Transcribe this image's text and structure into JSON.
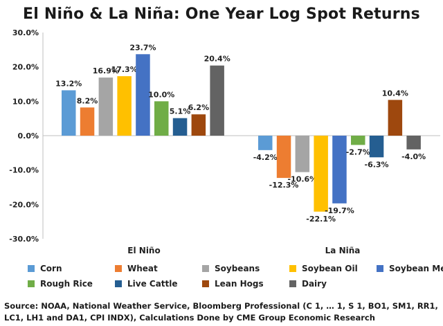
{
  "chart_data": {
    "type": "bar",
    "title": "El Niño & La Niña: One Year Log Spot Returns",
    "categories": [
      "El Niño",
      "La Niña"
    ],
    "ylim": [
      -30,
      30
    ],
    "yticks": [
      "30.0%",
      "20.0%",
      "10.0%",
      "0.0%",
      "-10.0%",
      "-20.0%",
      "-30.0%"
    ],
    "ytick_values": [
      30,
      20,
      10,
      0,
      -10,
      -20,
      -30
    ],
    "grid": false,
    "legend_position": "bottom",
    "series": [
      {
        "name": "Corn",
        "color": "#5b9bd5",
        "values": [
          13.2,
          -4.2
        ],
        "labels": [
          "13.2%",
          "-4.2%"
        ]
      },
      {
        "name": "Wheat",
        "color": "#ed7d31",
        "values": [
          8.2,
          -12.3
        ],
        "labels": [
          "8.2%",
          "-12.3%"
        ]
      },
      {
        "name": "Soybeans",
        "color": "#a5a5a5",
        "values": [
          16.9,
          -10.6
        ],
        "labels": [
          "16.9%",
          "-10.6%"
        ]
      },
      {
        "name": "Soybean Oil",
        "color": "#ffc000",
        "values": [
          17.3,
          -22.1
        ],
        "labels": [
          "17.3%",
          "-22.1%"
        ]
      },
      {
        "name": "Soybean Meal",
        "color": "#4472c4",
        "values": [
          23.7,
          -19.7
        ],
        "labels": [
          "23.7%",
          "-19.7%"
        ]
      },
      {
        "name": "Rough Rice",
        "color": "#70ad47",
        "values": [
          10.0,
          -2.7
        ],
        "labels": [
          "10.0%",
          "-2.7%"
        ]
      },
      {
        "name": "Live Cattle",
        "color": "#255e91",
        "values": [
          5.1,
          -6.3
        ],
        "labels": [
          "5.1%",
          "-6.3%"
        ]
      },
      {
        "name": "Lean Hogs",
        "color": "#9e480e",
        "values": [
          6.2,
          10.4
        ],
        "labels": [
          "6.2%",
          "10.4%"
        ]
      },
      {
        "name": "Dairy",
        "color": "#636363",
        "values": [
          20.4,
          -4.0
        ],
        "labels": [
          "20.4%",
          "-4.0%"
        ]
      }
    ],
    "source": "Source: NOAA, National Weather Service, Bloomberg Professional (C 1, … 1, S 1, BO1, SM1, RR1, LC1, LH1 and DA1, CPI INDX), Calculations Done by CME Group Economic Research"
  }
}
